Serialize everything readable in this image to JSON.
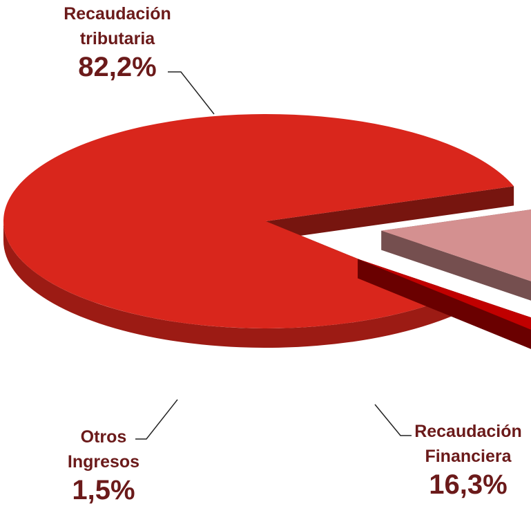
{
  "chart_data": {
    "type": "pie",
    "categories": [
      "Recaudación tributaria",
      "Recaudación Financiera",
      "Otros Ingresos"
    ],
    "values": [
      82.2,
      16.3,
      1.5
    ],
    "value_labels": [
      "82,2%",
      "16,3%",
      "1,5%"
    ],
    "colors": [
      "#d9261c",
      "#d49090",
      "#c00000"
    ]
  }
}
